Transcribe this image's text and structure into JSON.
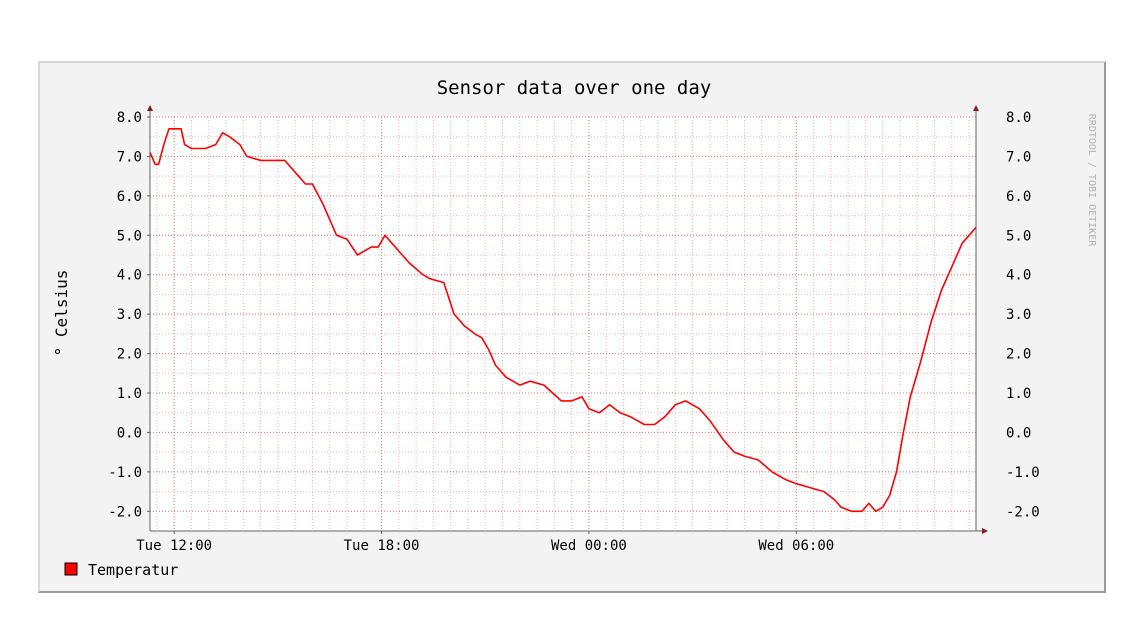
{
  "chart_data": {
    "type": "line",
    "title": "Sensor data over one day",
    "ylabel": "° Celsius",
    "watermark": "RRDTOOL / TOBI OETIKER",
    "ylim": [
      -2.5,
      8.0
    ],
    "y_ticks": [
      -2.0,
      -1.0,
      0.0,
      1.0,
      2.0,
      3.0,
      4.0,
      5.0,
      6.0,
      7.0,
      8.0
    ],
    "y_tick_labels": [
      "-2.0",
      "-1.0",
      "0.0",
      "1.0",
      "2.0",
      "3.0",
      "4.0",
      "5.0",
      "6.0",
      "7.0",
      "8.0"
    ],
    "xlim_hours": [
      -0.7,
      23.2
    ],
    "x_ticks_hours": [
      0,
      6,
      12,
      18
    ],
    "x_tick_labels": [
      "Tue 12:00",
      "Tue 18:00",
      "Wed 00:00",
      "Wed 06:00"
    ],
    "grid": true,
    "legend_position": "bottom-left",
    "series": [
      {
        "name": "Temperatur",
        "color": "#ff0000",
        "x_hours": [
          -0.7,
          -0.55,
          -0.45,
          -0.3,
          -0.15,
          0.0,
          0.2,
          0.3,
          0.5,
          0.6,
          0.9,
          1.2,
          1.4,
          1.6,
          1.9,
          2.1,
          2.5,
          2.8,
          3.2,
          3.4,
          3.8,
          4.0,
          4.3,
          4.7,
          5.0,
          5.3,
          5.5,
          5.7,
          5.9,
          6.1,
          6.3,
          6.5,
          6.8,
          7.2,
          7.4,
          7.8,
          8.1,
          8.4,
          8.7,
          8.9,
          9.1,
          9.3,
          9.6,
          10.0,
          10.3,
          10.7,
          11.2,
          11.5,
          11.8,
          12.0,
          12.3,
          12.6,
          12.9,
          13.2,
          13.6,
          13.9,
          14.2,
          14.5,
          14.8,
          15.2,
          15.5,
          15.9,
          16.2,
          16.5,
          16.9,
          17.3,
          17.7,
          18.0,
          18.4,
          18.8,
          19.1,
          19.3,
          19.6,
          19.9,
          20.1,
          20.3,
          20.5,
          20.7,
          20.9,
          21.1,
          21.3,
          21.6,
          21.9,
          22.2,
          22.5,
          22.8,
          23.0,
          23.2
        ],
        "y": [
          7.1,
          6.8,
          6.8,
          7.3,
          7.7,
          7.7,
          7.7,
          7.3,
          7.2,
          7.2,
          7.2,
          7.3,
          7.6,
          7.5,
          7.3,
          7.0,
          6.9,
          6.9,
          6.9,
          6.7,
          6.3,
          6.3,
          5.8,
          5.0,
          4.9,
          4.5,
          4.6,
          4.7,
          4.7,
          5.0,
          4.8,
          4.6,
          4.3,
          4.0,
          3.9,
          3.8,
          3.0,
          2.7,
          2.5,
          2.4,
          2.1,
          1.7,
          1.4,
          1.2,
          1.3,
          1.2,
          0.8,
          0.8,
          0.9,
          0.6,
          0.5,
          0.7,
          0.5,
          0.4,
          0.2,
          0.2,
          0.4,
          0.7,
          0.8,
          0.6,
          0.3,
          -0.2,
          -0.5,
          -0.6,
          -0.7,
          -1.0,
          -1.2,
          -1.3,
          -1.4,
          -1.5,
          -1.7,
          -1.9,
          -2.0,
          -2.0,
          -1.8,
          -2.0,
          -1.9,
          -1.6,
          -1.0,
          0.0,
          0.9,
          1.8,
          2.8,
          3.6,
          4.2,
          4.8,
          5.0,
          5.2
        ]
      }
    ]
  }
}
